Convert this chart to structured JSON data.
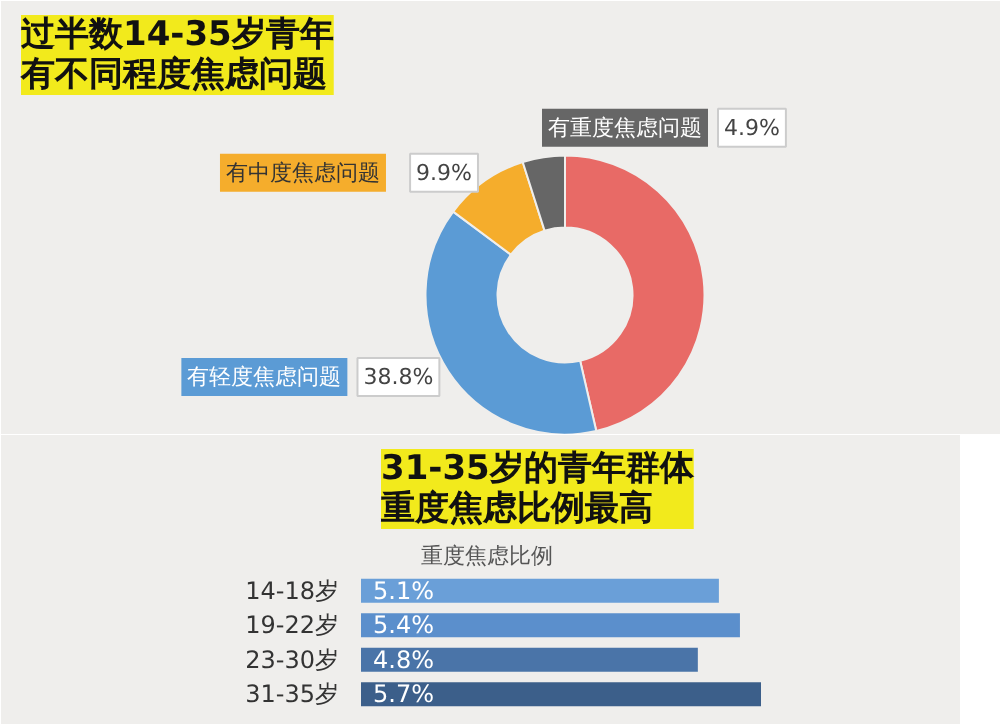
{
  "chart_data": [
    {
      "type": "donut",
      "title": "过半数14-35岁青年有不同程度焦虑问题",
      "categories": [
        null,
        "有轻度焦虑问题",
        "有中度焦虑问题",
        "有重度焦虑问题"
      ],
      "values": [
        46.4,
        38.8,
        9.9,
        4.9
      ],
      "colors": [
        "#e86a66",
        "#5b9bd5",
        "#f5ad2c",
        "#666666"
      ],
      "value_labels": [
        null,
        "38.8%",
        "9.9%",
        "4.9%"
      ]
    },
    {
      "type": "bar",
      "orientation": "horizontal",
      "title": "31-35岁的青年群体重度焦虑比例最高",
      "subtitle": "重度焦虑比例",
      "categories": [
        "14-18岁",
        "19-22岁",
        "23-30岁",
        "31-35岁"
      ],
      "values": [
        5.1,
        5.4,
        4.8,
        5.7
      ],
      "colors": [
        "#6a9fd8",
        "#5b8fcc",
        "#4a74a8",
        "#3c5f8a"
      ],
      "value_labels": [
        "5.1%",
        "5.4%",
        "4.8%",
        "5.7%"
      ],
      "tick_labels": "y"
    }
  ]
}
